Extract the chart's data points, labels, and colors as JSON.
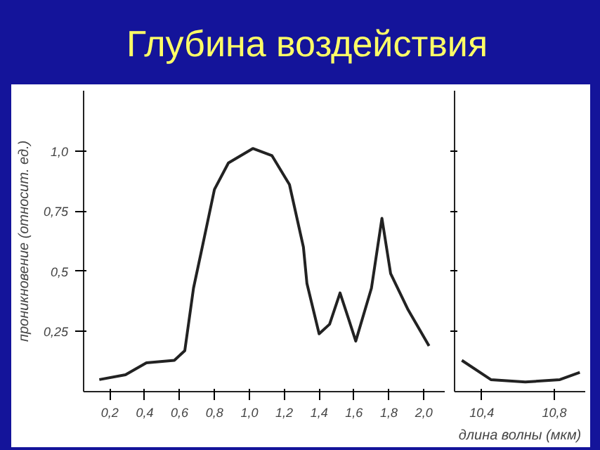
{
  "chart_data": [
    {
      "type": "line",
      "title": "Глубина воздействия",
      "ylabel": "проникновение (относит. ед.)",
      "xlim": [
        0.05,
        2.12
      ],
      "ylim": [
        0,
        1.25
      ],
      "xticks": [
        {
          "value": 0.2,
          "label": "0,2"
        },
        {
          "value": 0.4,
          "label": "0,4"
        },
        {
          "value": 0.6,
          "label": "0,6"
        },
        {
          "value": 0.8,
          "label": "0,8"
        },
        {
          "value": 1.0,
          "label": "1,0"
        },
        {
          "value": 1.2,
          "label": "1,2"
        },
        {
          "value": 1.4,
          "label": "1,4"
        },
        {
          "value": 1.6,
          "label": "1,6"
        },
        {
          "value": 1.8,
          "label": "1,8"
        },
        {
          "value": 2.0,
          "label": "2,0"
        }
      ],
      "yticks": [
        {
          "value": 0.25,
          "label": "0,25"
        },
        {
          "value": 0.5,
          "label": "0,5"
        },
        {
          "value": 0.75,
          "label": "0,75"
        },
        {
          "value": 1.0,
          "label": "1,0"
        }
      ],
      "grid": false,
      "marker": "none",
      "line_style": "solid",
      "series": [
        {
          "color": "#222222",
          "x": [
            0.14,
            0.29,
            0.41,
            0.57,
            0.63,
            0.68,
            0.73,
            0.8,
            0.88,
            1.02,
            1.13,
            1.23,
            1.31,
            1.33,
            1.4,
            1.46,
            1.52,
            1.57,
            1.61,
            1.7,
            1.76,
            1.81,
            1.91,
            2.03
          ],
          "values": [
            0.05,
            0.07,
            0.12,
            0.13,
            0.17,
            0.43,
            0.6,
            0.84,
            0.95,
            1.01,
            0.98,
            0.86,
            0.6,
            0.45,
            0.24,
            0.28,
            0.41,
            0.3,
            0.21,
            0.43,
            0.72,
            0.49,
            0.34,
            0.19
          ]
        }
      ]
    },
    {
      "type": "line",
      "xlabel": "длина волны (мкм)",
      "xlim": [
        10.25,
        10.97
      ],
      "ylim": [
        0,
        1.25
      ],
      "tick_labels": "x",
      "yticks": [
        {
          "value": 0.25,
          "label": null
        },
        {
          "value": 0.5,
          "label": null
        },
        {
          "value": 0.75,
          "label": null
        },
        {
          "value": 1.0,
          "label": null
        }
      ],
      "xticks": [
        {
          "value": 10.4,
          "label": "10,4"
        },
        {
          "value": 10.8,
          "label": "10,8"
        }
      ],
      "grid": false,
      "marker": "none",
      "line_style": "solid",
      "series": [
        {
          "color": "#222222",
          "x": [
            10.29,
            10.45,
            10.64,
            10.83,
            10.94
          ],
          "values": [
            0.13,
            0.05,
            0.04,
            0.05,
            0.08
          ]
        }
      ]
    }
  ]
}
